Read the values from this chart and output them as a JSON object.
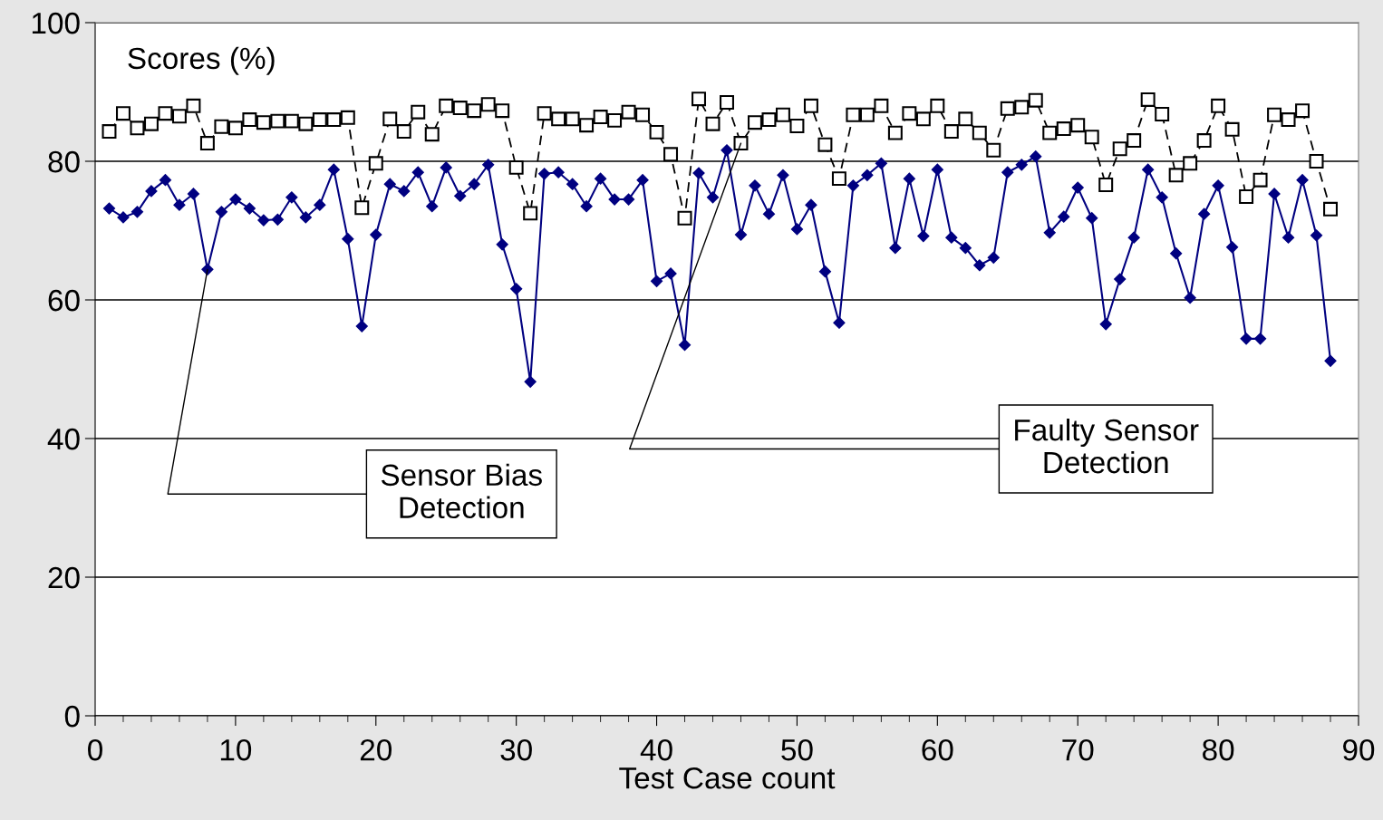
{
  "chart_data": {
    "type": "line",
    "ylabel": "Scores (%)",
    "xlabel": "Test Case count",
    "x": [
      1,
      2,
      3,
      4,
      5,
      6,
      7,
      8,
      9,
      10,
      11,
      12,
      13,
      14,
      15,
      16,
      17,
      18,
      19,
      20,
      21,
      22,
      23,
      24,
      25,
      26,
      27,
      28,
      29,
      30,
      31,
      32,
      33,
      34,
      35,
      36,
      37,
      38,
      39,
      40,
      41,
      42,
      43,
      44,
      45,
      46,
      47,
      48,
      49,
      50,
      51,
      52,
      53,
      54,
      55,
      56,
      57,
      58,
      59,
      60,
      61,
      62,
      63,
      64,
      65,
      66,
      67,
      68,
      69,
      70,
      71,
      72,
      73,
      74,
      75,
      76,
      77,
      78,
      79,
      80,
      81,
      82,
      83,
      84,
      85,
      86,
      87,
      88
    ],
    "series": [
      {
        "color": "#000080",
        "marker": "diamond",
        "line_style": "solid",
        "values": [
          73.2,
          71.9,
          72.7,
          75.7,
          77.3,
          73.7,
          75.3,
          64.4,
          72.7,
          74.5,
          73.2,
          71.5,
          71.6,
          74.8,
          71.9,
          73.7,
          78.8,
          68.8,
          56.2,
          69.4,
          76.7,
          75.7,
          78.4,
          73.5,
          79.1,
          75.0,
          76.7,
          79.5,
          68.0,
          61.6,
          48.2,
          78.2,
          78.4,
          76.7,
          73.5,
          77.5,
          74.5,
          74.5,
          77.3,
          62.7,
          63.8,
          53.5,
          78.3,
          74.8,
          81.6,
          69.4,
          76.5,
          72.4,
          78.0,
          70.2,
          73.7,
          64.1,
          56.7,
          76.5,
          78.0,
          79.7,
          67.5,
          77.5,
          69.2,
          78.8,
          69.0,
          67.5,
          65.0,
          66.1,
          78.4,
          79.5,
          80.7,
          69.7,
          72.0,
          76.2,
          71.8,
          56.5,
          63.0,
          69.0,
          78.8,
          74.8,
          66.7,
          60.3,
          72.4,
          76.5,
          67.6,
          54.4,
          54.4,
          75.3,
          69.0,
          77.3,
          69.3,
          51.2
        ]
      },
      {
        "color": "#000000",
        "marker": "square",
        "line_style": "dashed",
        "values": [
          84.3,
          86.9,
          84.8,
          85.4,
          86.9,
          86.5,
          88.0,
          82.6,
          85.0,
          84.8,
          86.0,
          85.6,
          85.8,
          85.8,
          85.4,
          86.0,
          86.0,
          86.3,
          73.3,
          79.7,
          86.1,
          84.3,
          87.1,
          83.9,
          88.0,
          87.7,
          87.3,
          88.2,
          87.3,
          79.1,
          72.5,
          86.9,
          86.1,
          86.1,
          85.2,
          86.4,
          85.9,
          87.1,
          86.7,
          84.2,
          81.0,
          71.8,
          89.0,
          85.4,
          88.5,
          82.6,
          85.6,
          86.0,
          86.7,
          85.1,
          88.0,
          82.4,
          77.5,
          86.7,
          86.7,
          88.0,
          84.1,
          86.9,
          86.1,
          88.0,
          84.3,
          86.1,
          84.1,
          81.6,
          87.6,
          87.8,
          88.8,
          84.1,
          84.7,
          85.2,
          83.5,
          76.6,
          81.8,
          83.0,
          88.9,
          86.8,
          78.0,
          79.7,
          83.0,
          88.0,
          84.6,
          74.9,
          77.3,
          86.7,
          86.0,
          87.3,
          80.0,
          73.1
        ]
      }
    ],
    "xlim": [
      0,
      90
    ],
    "xticks": [
      0,
      10,
      20,
      30,
      40,
      50,
      60,
      70,
      80,
      90
    ],
    "ylim": [
      0,
      100
    ],
    "yticks": [
      0,
      20,
      40,
      60,
      80,
      100
    ],
    "grid": "y",
    "legend": false,
    "annotations": [
      {
        "text": "Sensor Bias\nDetection",
        "x": 8,
        "y": 64.4
      },
      {
        "text": "Faulty Sensor\nDetection",
        "x": 46,
        "y": 82.6
      }
    ]
  }
}
